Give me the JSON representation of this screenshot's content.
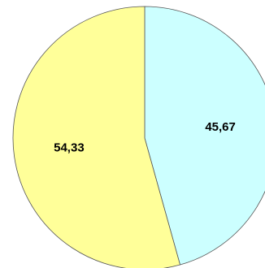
{
  "chart_data": {
    "type": "pie",
    "title": "",
    "slices": [
      {
        "label": "45,67",
        "value": 45.67,
        "color": "#ccffff"
      },
      {
        "label": "54,33",
        "value": 54.33,
        "color": "#ffff99"
      }
    ],
    "start_angle_deg": 0,
    "direction": "clockwise",
    "outline_color": "#555555",
    "legend": "none",
    "grid": false
  }
}
